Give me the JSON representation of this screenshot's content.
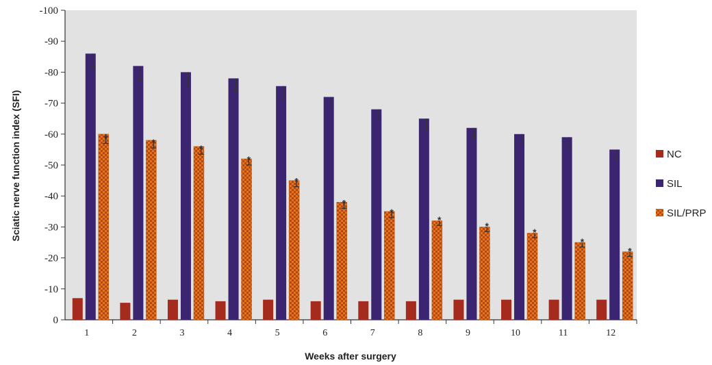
{
  "chart_data": {
    "type": "bar",
    "categories": [
      "1",
      "2",
      "3",
      "4",
      "5",
      "6",
      "7",
      "8",
      "9",
      "10",
      "11",
      "12"
    ],
    "series": [
      {
        "name": "NC",
        "color": "#a52b1e",
        "values": [
          -7,
          -5.5,
          -6.5,
          -6,
          -6.5,
          -6,
          -6,
          -6,
          -6.5,
          -6.5,
          -6.5,
          -6.5
        ],
        "errors": [
          0,
          0,
          0,
          0,
          0,
          0,
          0,
          0,
          0,
          0,
          0,
          0
        ]
      },
      {
        "name": "SIL",
        "color": "#3b2570",
        "values": [
          -86,
          -82,
          -80,
          -78,
          -75.5,
          -72,
          -68,
          -65,
          -62,
          -60,
          -59,
          -55
        ],
        "errors": [
          4.5,
          4.5,
          4.5,
          4,
          4,
          3.5,
          3.5,
          3.5,
          3,
          3,
          3,
          3
        ]
      },
      {
        "name": "SIL/PRP",
        "color": "#e8731c",
        "values": [
          -60,
          -58,
          -56,
          -52,
          -45,
          -38,
          -35,
          -32,
          -30,
          -28,
          -25,
          -22
        ],
        "errors": [
          3,
          2.5,
          2.5,
          2,
          2,
          2,
          2,
          1.5,
          1.5,
          1.5,
          1.5,
          1.5
        ],
        "markers": [
          "*",
          "*",
          "*",
          "*",
          "*",
          "*",
          "*",
          "*",
          "*",
          "*",
          "*",
          "*"
        ]
      }
    ],
    "xlabel": "Weeks after surgery",
    "ylabel": "Sciatic nerve function index (SFI)",
    "ylim": [
      0,
      -100
    ],
    "yticks": [
      "0",
      "-10",
      "-20",
      "-30",
      "-40",
      "-50",
      "-60",
      "-70",
      "-80",
      "-90",
      "-100"
    ],
    "grid": false,
    "legend_position": "right",
    "plot_background": "#e2e2e2"
  }
}
